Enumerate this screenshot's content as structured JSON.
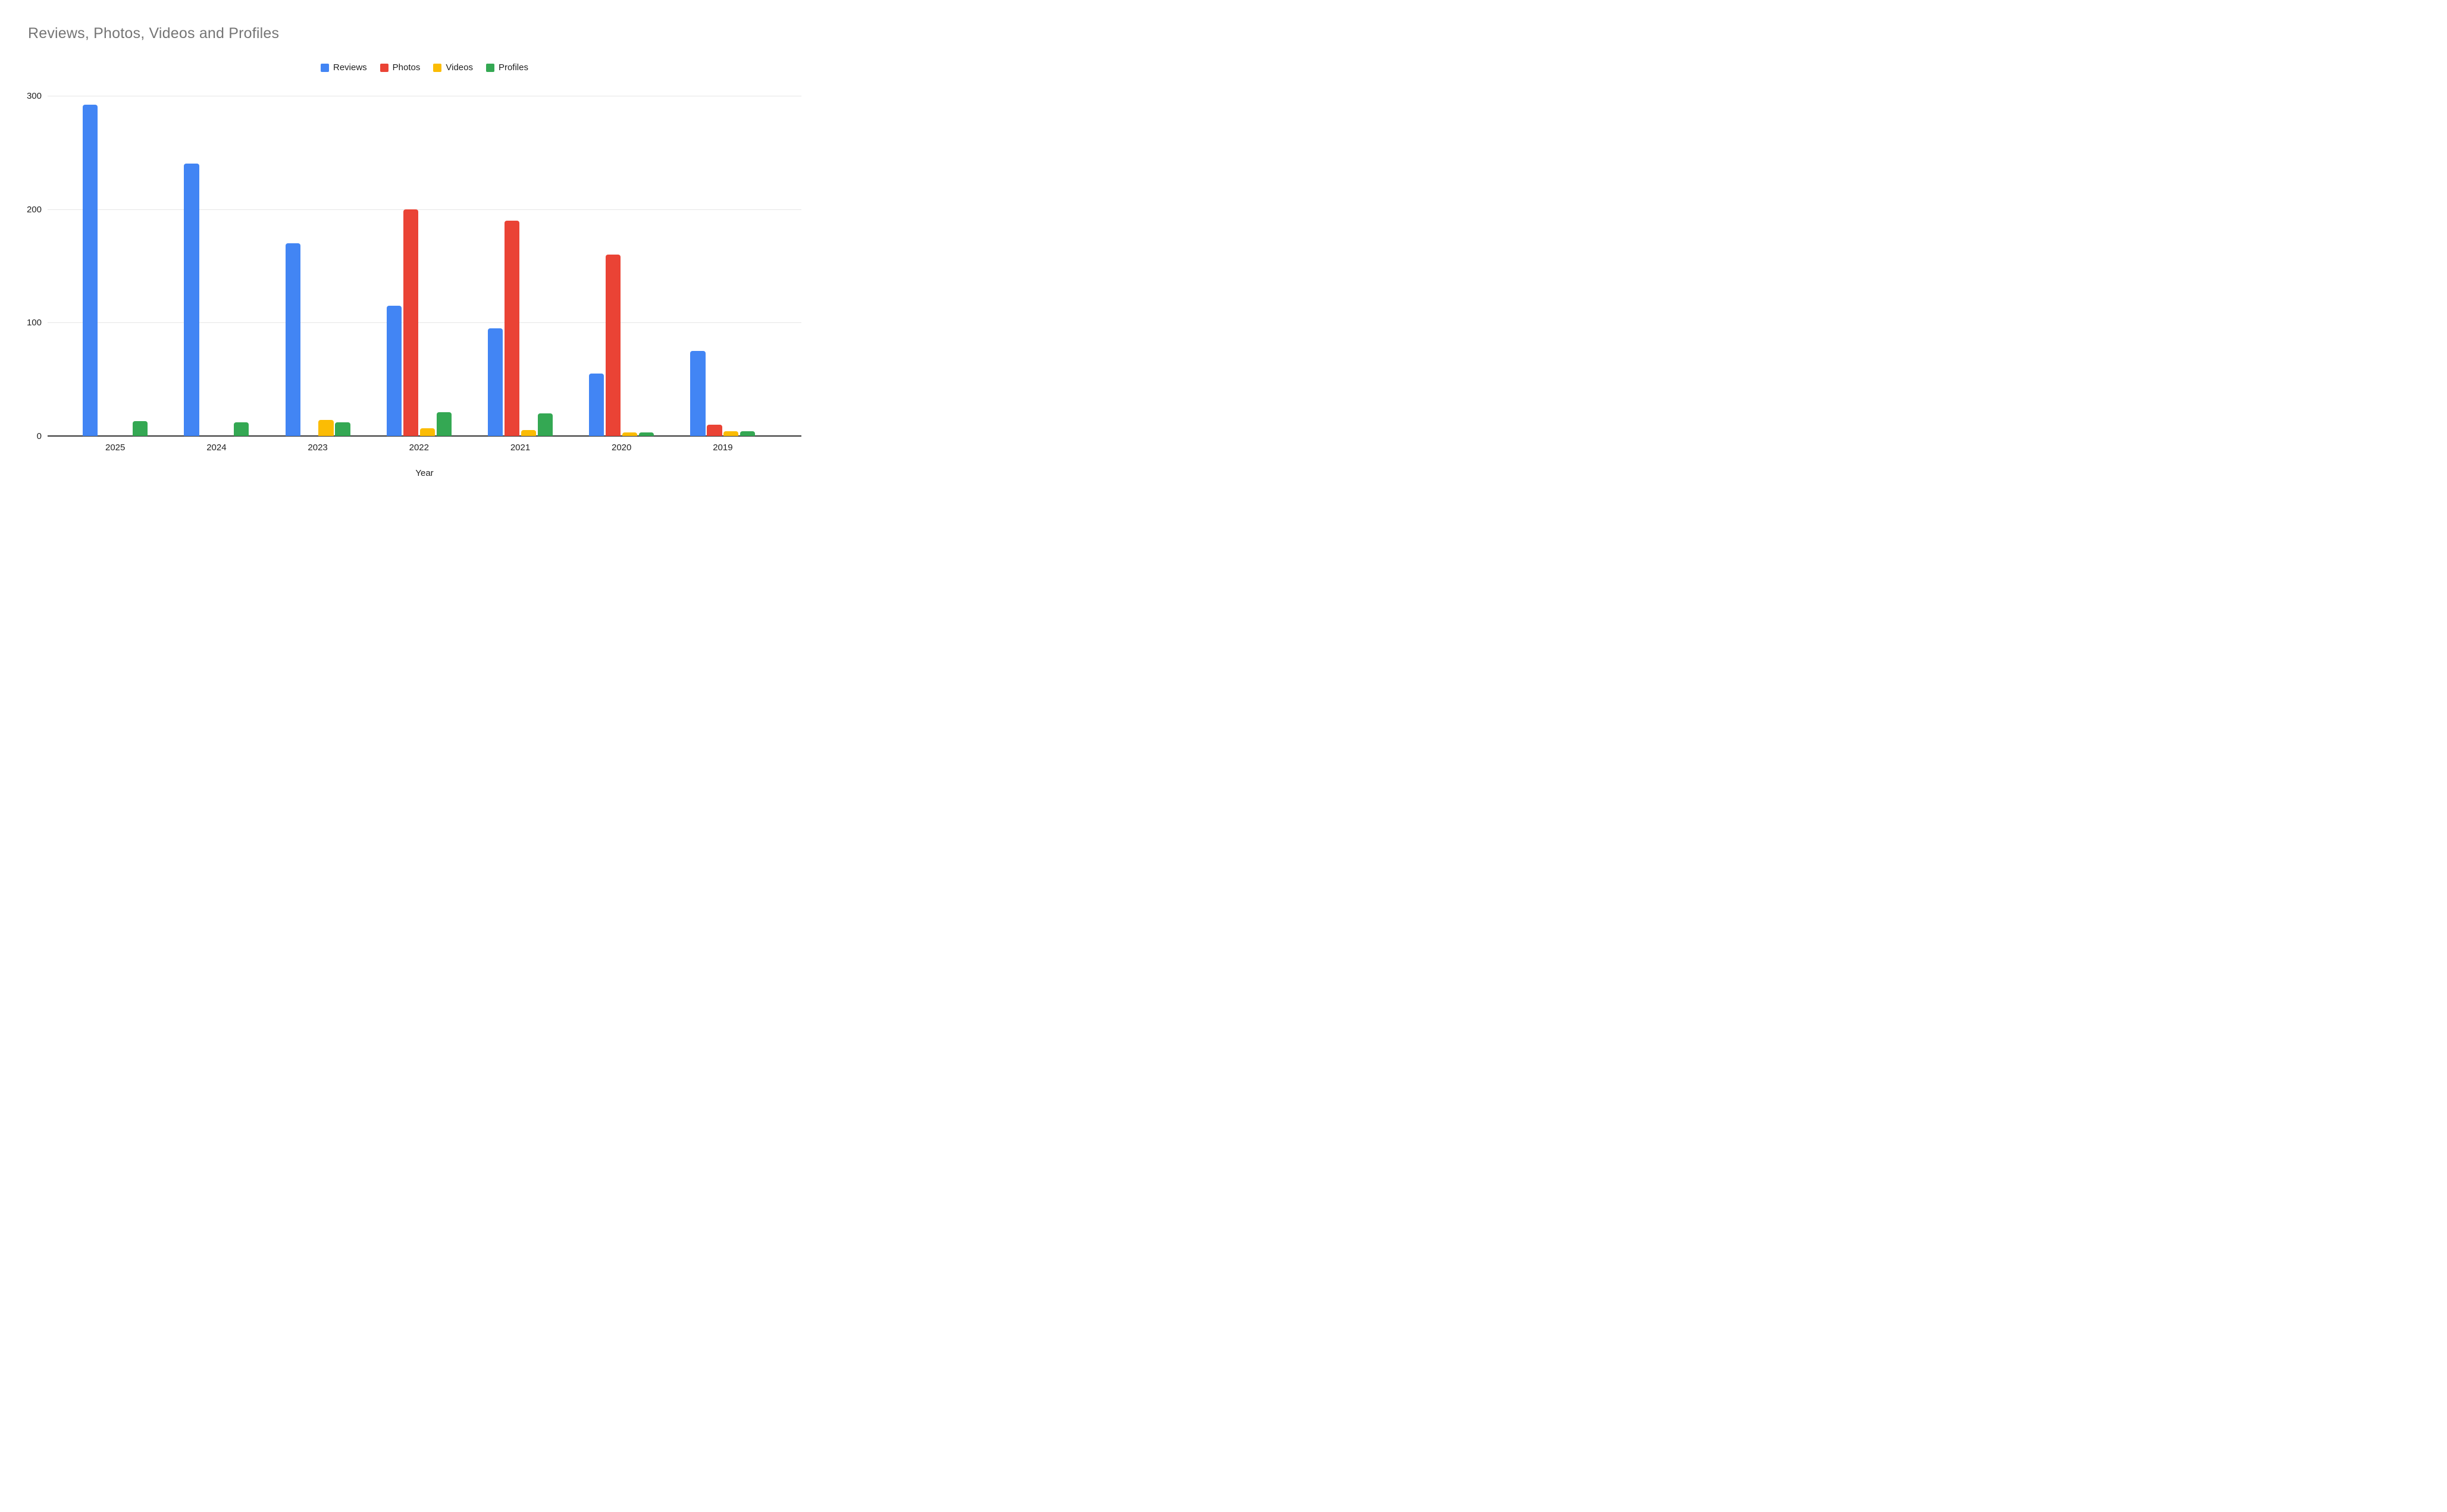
{
  "chart_data": {
    "type": "bar",
    "title": "Reviews, Photos, Videos and Profiles",
    "categories": [
      "2025",
      "2024",
      "2023",
      "2022",
      "2021",
      "2020",
      "2019"
    ],
    "series": [
      {
        "name": "Reviews",
        "color": "#4285F4",
        "values": [
          292,
          240,
          170,
          115,
          95,
          55,
          75
        ]
      },
      {
        "name": "Photos",
        "color": "#EA4335",
        "values": [
          0,
          0,
          0,
          200,
          190,
          160,
          10
        ]
      },
      {
        "name": "Videos",
        "color": "#FBBC04",
        "values": [
          0,
          0,
          14,
          7,
          5,
          3,
          4
        ]
      },
      {
        "name": "Profiles",
        "color": "#34A853",
        "values": [
          13,
          12,
          12,
          21,
          20,
          3,
          4
        ]
      }
    ],
    "xlabel": "Year",
    "ylabel": "",
    "ylim": [
      0,
      300
    ],
    "yticks": [
      0,
      100,
      200,
      300
    ],
    "grid": true,
    "legend_position": "top",
    "title_color": "#757575",
    "axis_color": "#333333",
    "gridline_color": "#e6e6e6",
    "label_color": "#1f1f1f"
  }
}
